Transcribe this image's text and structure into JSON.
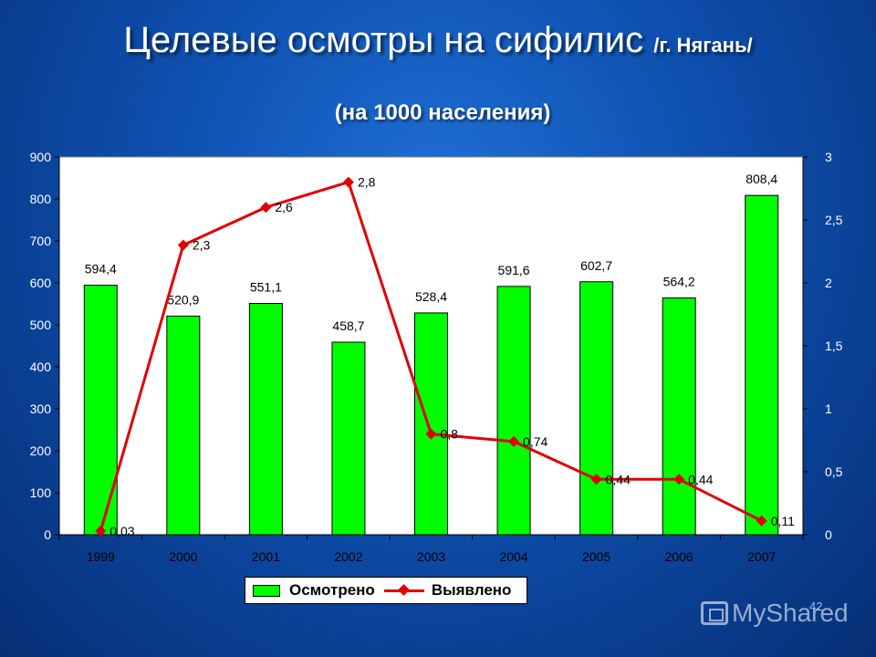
{
  "slide": {
    "title": "Целевые осмотры на сифилис",
    "title_suffix": "/г. Нягань/",
    "subtitle": "(на 1000 населения)",
    "page_number": "42",
    "watermark": "MyShared"
  },
  "colors": {
    "bar": "#00ff00",
    "line": "#e00000"
  },
  "legend": {
    "bar_label": "Осмотрено",
    "line_label": "Выявлено",
    "placement": "bottom"
  },
  "chart_data": {
    "type": "bar",
    "categories": [
      "1999",
      "2000",
      "2001",
      "2002",
      "2003",
      "2004",
      "2005",
      "2006",
      "2007"
    ],
    "series": [
      {
        "name": "Осмотрено",
        "type": "bar",
        "axis": "left",
        "values": [
          594.4,
          520.9,
          551.1,
          458.7,
          528.4,
          591.6,
          602.7,
          564.2,
          808.4
        ],
        "labels": [
          "594,4",
          "520,9",
          "551,1",
          "458,7",
          "528,4",
          "591,6",
          "602,7",
          "564,2",
          "808,4"
        ]
      },
      {
        "name": "Выявлено",
        "type": "line",
        "axis": "right",
        "values": [
          0.03,
          2.3,
          2.6,
          2.8,
          0.8,
          0.74,
          0.44,
          0.44,
          0.11
        ],
        "labels": [
          "0,03",
          "2,3",
          "2,6",
          "2,8",
          "0,8",
          "0,74",
          "0,44",
          "0,44",
          "0,11"
        ]
      }
    ],
    "ylim_left": [
      0,
      900
    ],
    "yticks_left": [
      "0",
      "100",
      "200",
      "300",
      "400",
      "500",
      "600",
      "700",
      "800",
      "900"
    ],
    "ylim_right": [
      0,
      3
    ],
    "yticks_right": [
      "0",
      "0,5",
      "1",
      "1,5",
      "2",
      "2,5",
      "3"
    ],
    "grid": false
  }
}
